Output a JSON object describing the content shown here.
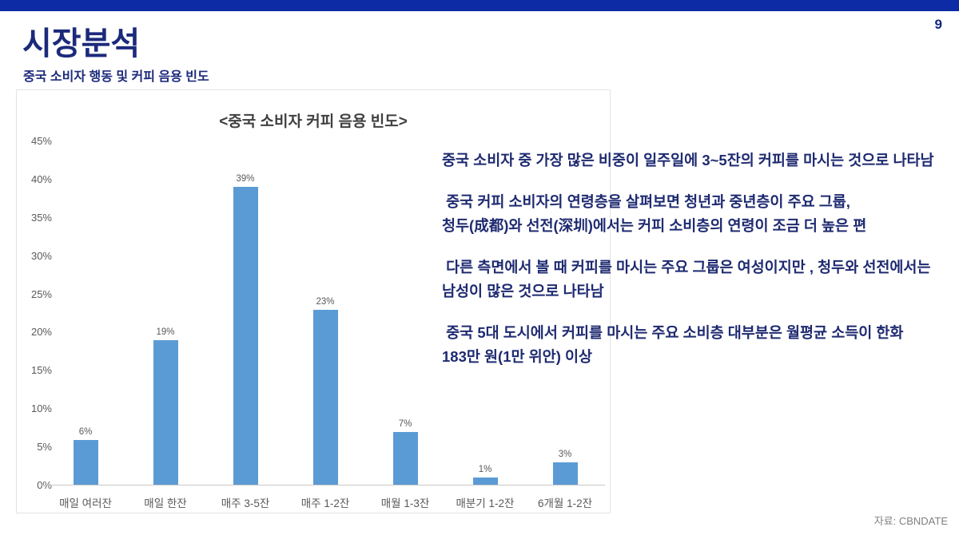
{
  "slide": {
    "page_number": "9",
    "title": "시장분석",
    "subtitle": "중국 소비자 행동 및 커피 음용 빈도",
    "source": "자료: CBNDATE",
    "accent_color": "#0d2ba5",
    "title_color": "#1c2a7b",
    "body_text_color": "#1e2a70"
  },
  "chart_data": {
    "type": "bar",
    "title": "<중국 소비자 커피 음용 빈도>",
    "categories": [
      "매일 여러잔",
      "매일 한잔",
      "매주 3-5잔",
      "매주 1-2잔",
      "매월 1-3잔",
      "매분기 1-2잔",
      "6개월 1-2잔"
    ],
    "values": [
      6,
      19,
      39,
      23,
      7,
      1,
      3
    ],
    "value_labels": [
      "6%",
      "19%",
      "39%",
      "23%",
      "7%",
      "1%",
      "3%"
    ],
    "title_text": "<중국 소비자 커피 음용 빈도>",
    "xlabel": "",
    "ylabel": "",
    "ylim": [
      0,
      45
    ],
    "ytick_step": 5,
    "ytick_suffix": "%",
    "grid": false,
    "legend": "none",
    "bar_color": "#5b9bd5",
    "axis_color": "#c9c9c9",
    "label_color": "#595959"
  },
  "insights": {
    "paragraphs": [
      [
        "중국 소비자 중 가장 많은 비중이 일주일에 3~5잔의 커피를 마시는 것으로 나타남"
      ],
      [
        " 중국 커피 소비자의 연령층을 살펴보면 청년과 중년층이 주요 그룹,",
        "청두(成都)와 선전(深圳)에서는 커피 소비층의 연령이 조금 더 높은 편"
      ],
      [
        " 다른 측면에서 볼 때 커피를 마시는 주요 그룹은 여성이지만 , 청두와 선전에서는",
        "남성이 많은 것으로 나타남"
      ],
      [
        " 중국 5대 도시에서 커피를 마시는 주요 소비층 대부분은 월평균 소득이 한화",
        "183만 원(1만 위안) 이상"
      ]
    ]
  }
}
